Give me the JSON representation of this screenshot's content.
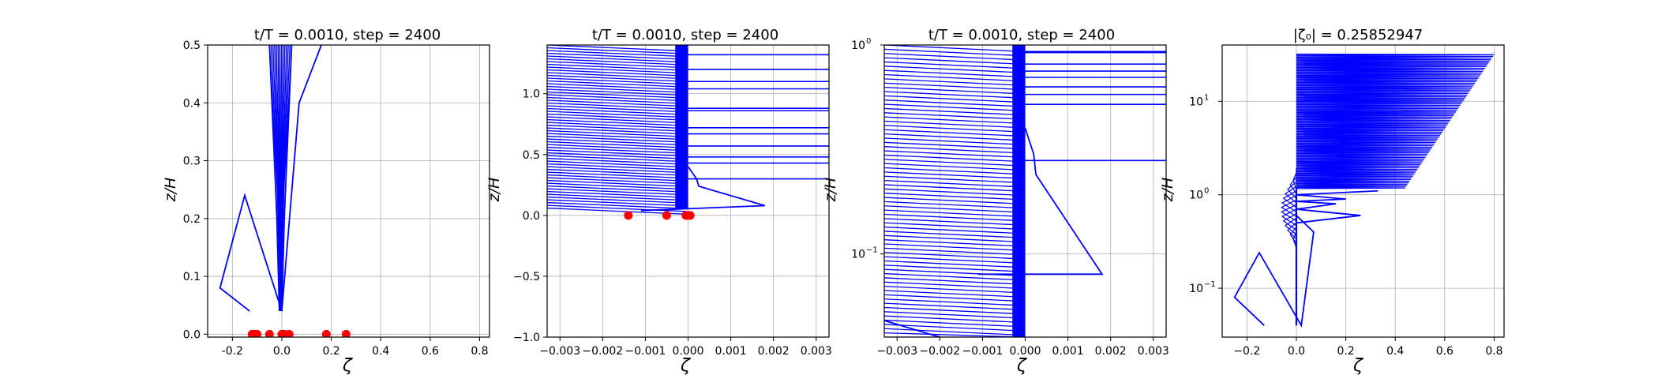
{
  "chart_data": [
    {
      "type": "line",
      "title": "t/T = 0.0010, step = 2400",
      "xlabel": "ζ",
      "ylabel": "z/H",
      "xlim": [
        -0.3,
        0.84
      ],
      "ylim": [
        -0.005,
        0.5
      ],
      "yscale": "linear",
      "grid": true,
      "xticks": [
        "-0.2",
        "0.0",
        "0.2",
        "0.4",
        "0.6",
        "0.8"
      ],
      "xtick_values": [
        -0.2,
        0.0,
        0.2,
        0.4,
        0.6,
        0.8
      ],
      "yticks": [
        "0.0",
        "0.1",
        "0.2",
        "0.3",
        "0.4",
        "0.5"
      ],
      "ytick_values": [
        0.0,
        0.1,
        0.2,
        0.3,
        0.4,
        0.5
      ],
      "series": [
        {
          "color": "#0000ff",
          "x": [
            -0.13,
            -0.25,
            -0.15,
            0.0,
            0.07,
            0.16
          ],
          "y": [
            0.04,
            0.08,
            0.24,
            0.04,
            0.4,
            0.5
          ]
        },
        {
          "color": "#0000ff",
          "x": [
            -0.05,
            -0.04,
            -0.03,
            -0.02,
            -0.01
          ],
          "y": [
            0.5,
            0.4,
            0.3,
            0.2,
            0.04
          ]
        },
        {
          "color": "#0000ff",
          "x": [
            0.04,
            0.03,
            0.02,
            0.01,
            0.0
          ],
          "y": [
            0.5,
            0.4,
            0.3,
            0.2,
            0.04
          ]
        }
      ],
      "bundle": {
        "color": "#0000ff",
        "x_left_top": -0.05,
        "x_right_top": 0.04,
        "x_bottom": -0.005,
        "y_top": 0.5,
        "y_bottom": 0.04,
        "count": 14
      },
      "markers": {
        "color": "#ff0000",
        "x": [
          -0.12,
          -0.11,
          -0.1,
          -0.05,
          0.0,
          0.01,
          0.03,
          0.18,
          0.26
        ],
        "y": [
          0.0,
          0.0,
          0.0,
          0.0,
          0.0,
          0.0,
          0.0,
          0.0,
          0.0
        ]
      }
    },
    {
      "type": "line",
      "title": "t/T = 0.0010, step = 2400",
      "xlabel": "ζ",
      "ylabel": "z/H",
      "xlim": [
        -0.0033,
        0.0033
      ],
      "ylim": [
        -1.0,
        1.4
      ],
      "yscale": "linear",
      "grid": true,
      "xticks": [
        "−0.003",
        "−0.002",
        "−0.001",
        "0.000",
        "0.001",
        "0.002",
        "0.003"
      ],
      "xtick_values": [
        -0.003,
        -0.002,
        -0.001,
        0.0,
        0.001,
        0.002,
        0.003
      ],
      "yticks": [
        "−1.0",
        "−0.5",
        "0.0",
        "0.5",
        "1.0"
      ],
      "ytick_values": [
        -1.0,
        -0.5,
        0.0,
        0.5,
        1.0
      ],
      "series": [
        {
          "color": "#0000ff",
          "x": [
            0.0,
            0.0002,
            0.00025,
            0.0018,
            -0.0011
          ],
          "y": [
            0.4,
            0.3,
            0.24,
            0.08,
            0.04
          ]
        }
      ],
      "bundle": {
        "color": "#0000ff",
        "x_left_edge": -0.0033,
        "x_stop": 0.0,
        "y_top": 1.4,
        "y_bottom": 0.06,
        "count": 60
      },
      "levels": {
        "color": "#0000ff",
        "x_end": 0.0033,
        "y": [
          1.32,
          1.2,
          1.1,
          1.04,
          0.88,
          0.86,
          0.72,
          0.67,
          0.57,
          0.48,
          0.43,
          0.3
        ]
      },
      "markers": {
        "color": "#ff0000",
        "x": [
          -0.0014,
          -0.0005,
          -5e-05,
          0.0,
          5e-05
        ],
        "y": [
          0.0,
          0.0,
          0.0,
          0.0,
          0.0
        ]
      }
    },
    {
      "type": "line",
      "title": "t/T = 0.0010, step = 2400",
      "xlabel": "ζ",
      "ylabel": "z/H",
      "xlim": [
        -0.0033,
        0.0033
      ],
      "ylim": [
        0.04,
        1.0
      ],
      "yscale": "log",
      "grid": true,
      "xticks": [
        "−0.003",
        "−0.002",
        "−0.001",
        "0.000",
        "0.001",
        "0.002",
        "0.003"
      ],
      "xtick_values": [
        -0.003,
        -0.002,
        -0.001,
        0.0,
        0.001,
        0.002,
        0.003
      ],
      "yticks": [
        "10",
        "10"
      ],
      "ytick_exponents": [
        "−1",
        "0"
      ],
      "ytick_values": [
        0.1,
        1.0
      ],
      "series": [
        {
          "color": "#0000ff",
          "x": [
            0.0,
            0.0002,
            0.00025,
            0.0018,
            -0.0011
          ],
          "y": [
            0.4,
            0.3,
            0.24,
            0.08,
            0.08
          ]
        },
        {
          "color": "#0000ff",
          "x": [
            -0.0033,
            -0.002
          ],
          "y": [
            0.048,
            0.04
          ]
        }
      ],
      "bundle": {
        "color": "#0000ff",
        "x_left_edge": -0.0033,
        "x_stop": 0.0,
        "y_top": 1.0,
        "y_bottom": 0.04,
        "count": 70
      },
      "levels": {
        "color": "#0000ff",
        "x_end": 0.0033,
        "y": [
          0.93,
          0.92,
          0.81,
          0.75,
          0.7,
          0.63,
          0.58,
          0.52,
          0.28
        ]
      }
    },
    {
      "type": "line",
      "title": "|ζ₀| = 0.25852947",
      "xlabel": "ζ",
      "ylabel": "z/H",
      "xlim": [
        -0.3,
        0.84
      ],
      "ylim": [
        0.03,
        40
      ],
      "yscale": "log",
      "grid": true,
      "xticks": [
        "−0.2",
        "0.0",
        "0.2",
        "0.4",
        "0.6",
        "0.8"
      ],
      "xtick_values": [
        -0.2,
        0.0,
        0.2,
        0.4,
        0.6,
        0.8
      ],
      "yticks": [
        "10",
        "10",
        "10"
      ],
      "ytick_exponents": [
        "−1",
        "0",
        "1"
      ],
      "ytick_values": [
        0.1,
        1.0,
        10.0
      ],
      "series": [
        {
          "color": "#0000ff",
          "x": [
            -0.13,
            -0.25,
            -0.15,
            0.02,
            0.07,
            0.0
          ],
          "y": [
            0.04,
            0.08,
            0.24,
            0.04,
            0.4,
            0.6
          ]
        },
        {
          "color": "#0000ff",
          "x": [
            0.0,
            0.26,
            0.0,
            0.16,
            0.0,
            0.2,
            0.0,
            0.33
          ],
          "y": [
            0.5,
            0.6,
            0.7,
            0.8,
            0.85,
            0.9,
            1.0,
            1.1
          ]
        }
      ],
      "band": {
        "color": "#0000ff",
        "x_left": 0.0,
        "x_right_top": 0.8,
        "y_top": 32,
        "y_bottom": 1.2,
        "count": 80
      },
      "bulge": {
        "color": "#0000ff",
        "x_min": -0.06,
        "y_top": 1.6,
        "y_bottom": 0.3
      }
    }
  ]
}
